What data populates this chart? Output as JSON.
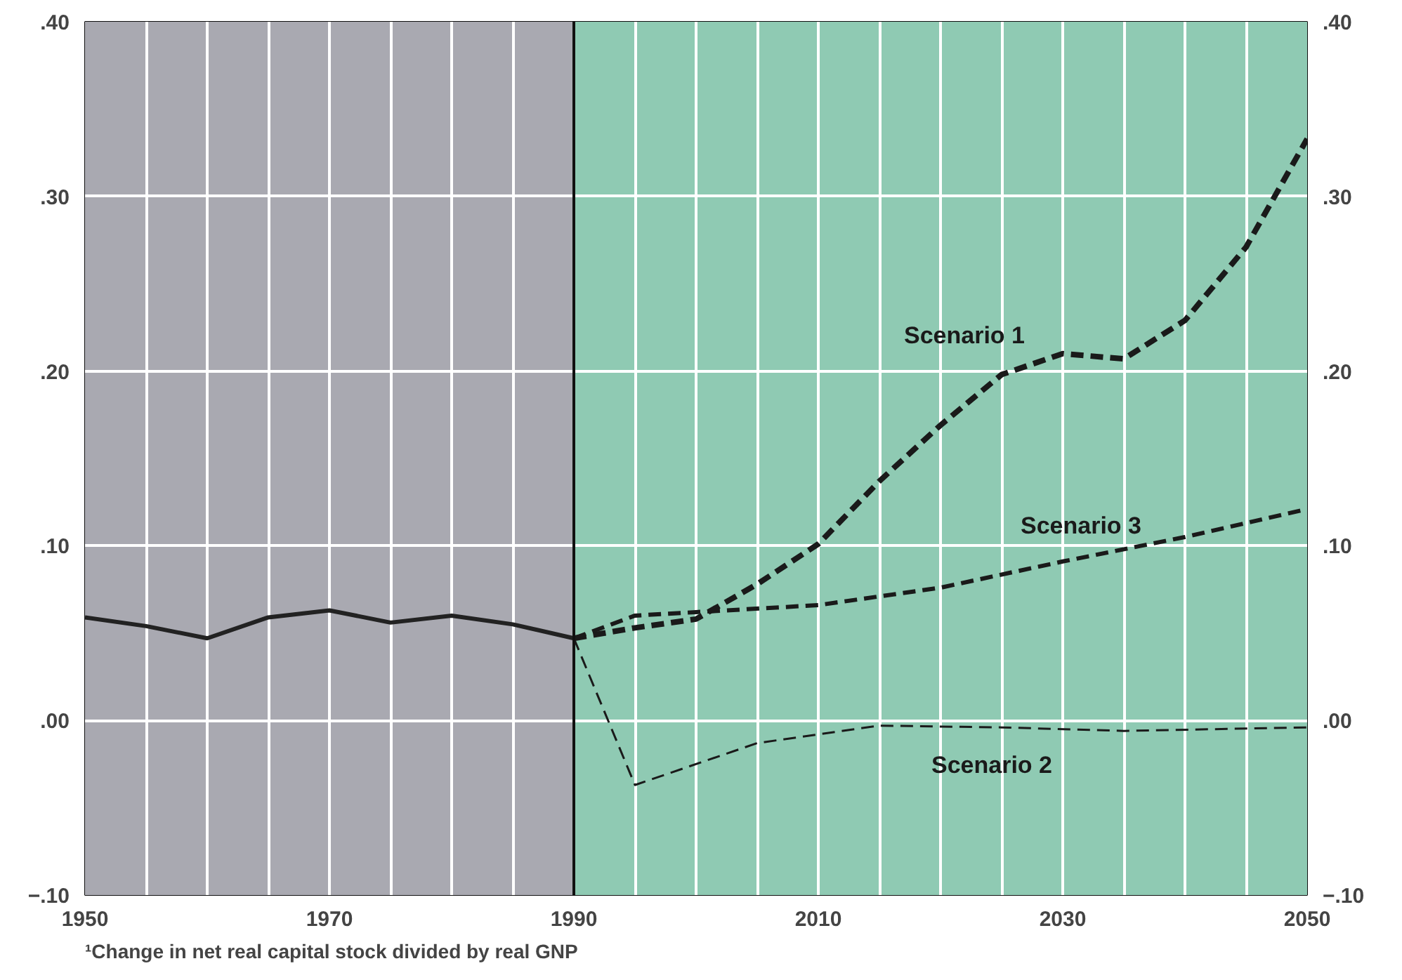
{
  "chart_data": {
    "type": "line",
    "xlim": [
      1950,
      2050
    ],
    "ylim": [
      -0.1,
      0.4
    ],
    "y2lim": [
      -0.1,
      0.4
    ],
    "xticks": [
      1950,
      {
        "value": 1955,
        "label": null
      },
      {
        "value": 1960,
        "label": null
      },
      {
        "value": 1965,
        "label": null
      },
      1970,
      {
        "value": 1975,
        "label": null
      },
      {
        "value": 1980,
        "label": null
      },
      {
        "value": 1985,
        "label": null
      },
      1990,
      {
        "value": 1995,
        "label": null
      },
      {
        "value": 2000,
        "label": null
      },
      {
        "value": 2005,
        "label": null
      },
      2010,
      {
        "value": 2015,
        "label": null
      },
      {
        "value": 2020,
        "label": null
      },
      {
        "value": 2025,
        "label": null
      },
      2030,
      {
        "value": 2035,
        "label": null
      },
      {
        "value": 2040,
        "label": null
      },
      {
        "value": 2045,
        "label": null
      },
      2050
    ],
    "yticks": [
      {
        "value": -0.1,
        "label": "−.10"
      },
      {
        "value": 0,
        "label": ".00"
      },
      {
        "value": 0.1,
        "label": ".10"
      },
      {
        "value": 0.2,
        "label": ".20"
      },
      {
        "value": 0.3,
        "label": ".30"
      },
      {
        "value": 0.4,
        "label": ".40"
      }
    ],
    "y2ticks": [
      {
        "value": -0.1,
        "label": "−.10"
      },
      {
        "value": 0,
        "label": ".00"
      },
      {
        "value": 0.1,
        "label": ".10"
      },
      {
        "value": 0.2,
        "label": ".20"
      },
      {
        "value": 0.3,
        "label": ".30"
      },
      {
        "value": 0.4,
        "label": ".40"
      }
    ],
    "grid": true,
    "marker": "none",
    "series": [
      {
        "color": "#222222",
        "line_style": "solid",
        "x": [
          1950,
          1955,
          1960,
          1965,
          1970,
          1975,
          1980,
          1985,
          1990
        ],
        "values": [
          0.059,
          0.054,
          0.047,
          0.059,
          0.063,
          0.056,
          0.06,
          0.055,
          0.047
        ]
      },
      {
        "name": "Scenario 1",
        "color": "#1a1a1a",
        "line_style": "dashed",
        "x": [
          1990,
          1995,
          2000,
          2005,
          2010,
          2015,
          2020,
          2025,
          2030,
          2035,
          2040,
          2045,
          2050
        ],
        "values": [
          0.047,
          0.053,
          0.058,
          0.078,
          0.101,
          0.137,
          0.169,
          0.198,
          0.21,
          0.207,
          0.229,
          0.271,
          0.333
        ]
      },
      {
        "name": "Scenario 2",
        "color": "#1a1a1a",
        "line_style": "dashed",
        "x": [
          1990,
          1995,
          2005,
          2015,
          2025,
          2035,
          2050
        ],
        "values": [
          0.047,
          -0.037,
          -0.013,
          -0.003,
          -0.004,
          -0.006,
          -0.004
        ]
      },
      {
        "name": "Scenario 3",
        "color": "#1a1a1a",
        "line_style": "dashed",
        "x": [
          1990,
          1995,
          2000,
          2010,
          2020,
          2030,
          2040,
          2050
        ],
        "values": [
          0.047,
          0.06,
          0.062,
          0.066,
          0.076,
          0.091,
          0.105,
          0.121
        ]
      }
    ],
    "bands": [
      {
        "axis": "x",
        "from": 1950,
        "to": 1990,
        "color": "#a9a9b1"
      },
      {
        "axis": "x",
        "from": 1990,
        "to": 2050,
        "color": "#8fcab3"
      }
    ],
    "ref_lines": [
      {
        "axis": "x",
        "value": 1990,
        "color": "#111111"
      }
    ],
    "annotations": [
      "¹Change in net real capital stock divided by real GNP"
    ]
  }
}
